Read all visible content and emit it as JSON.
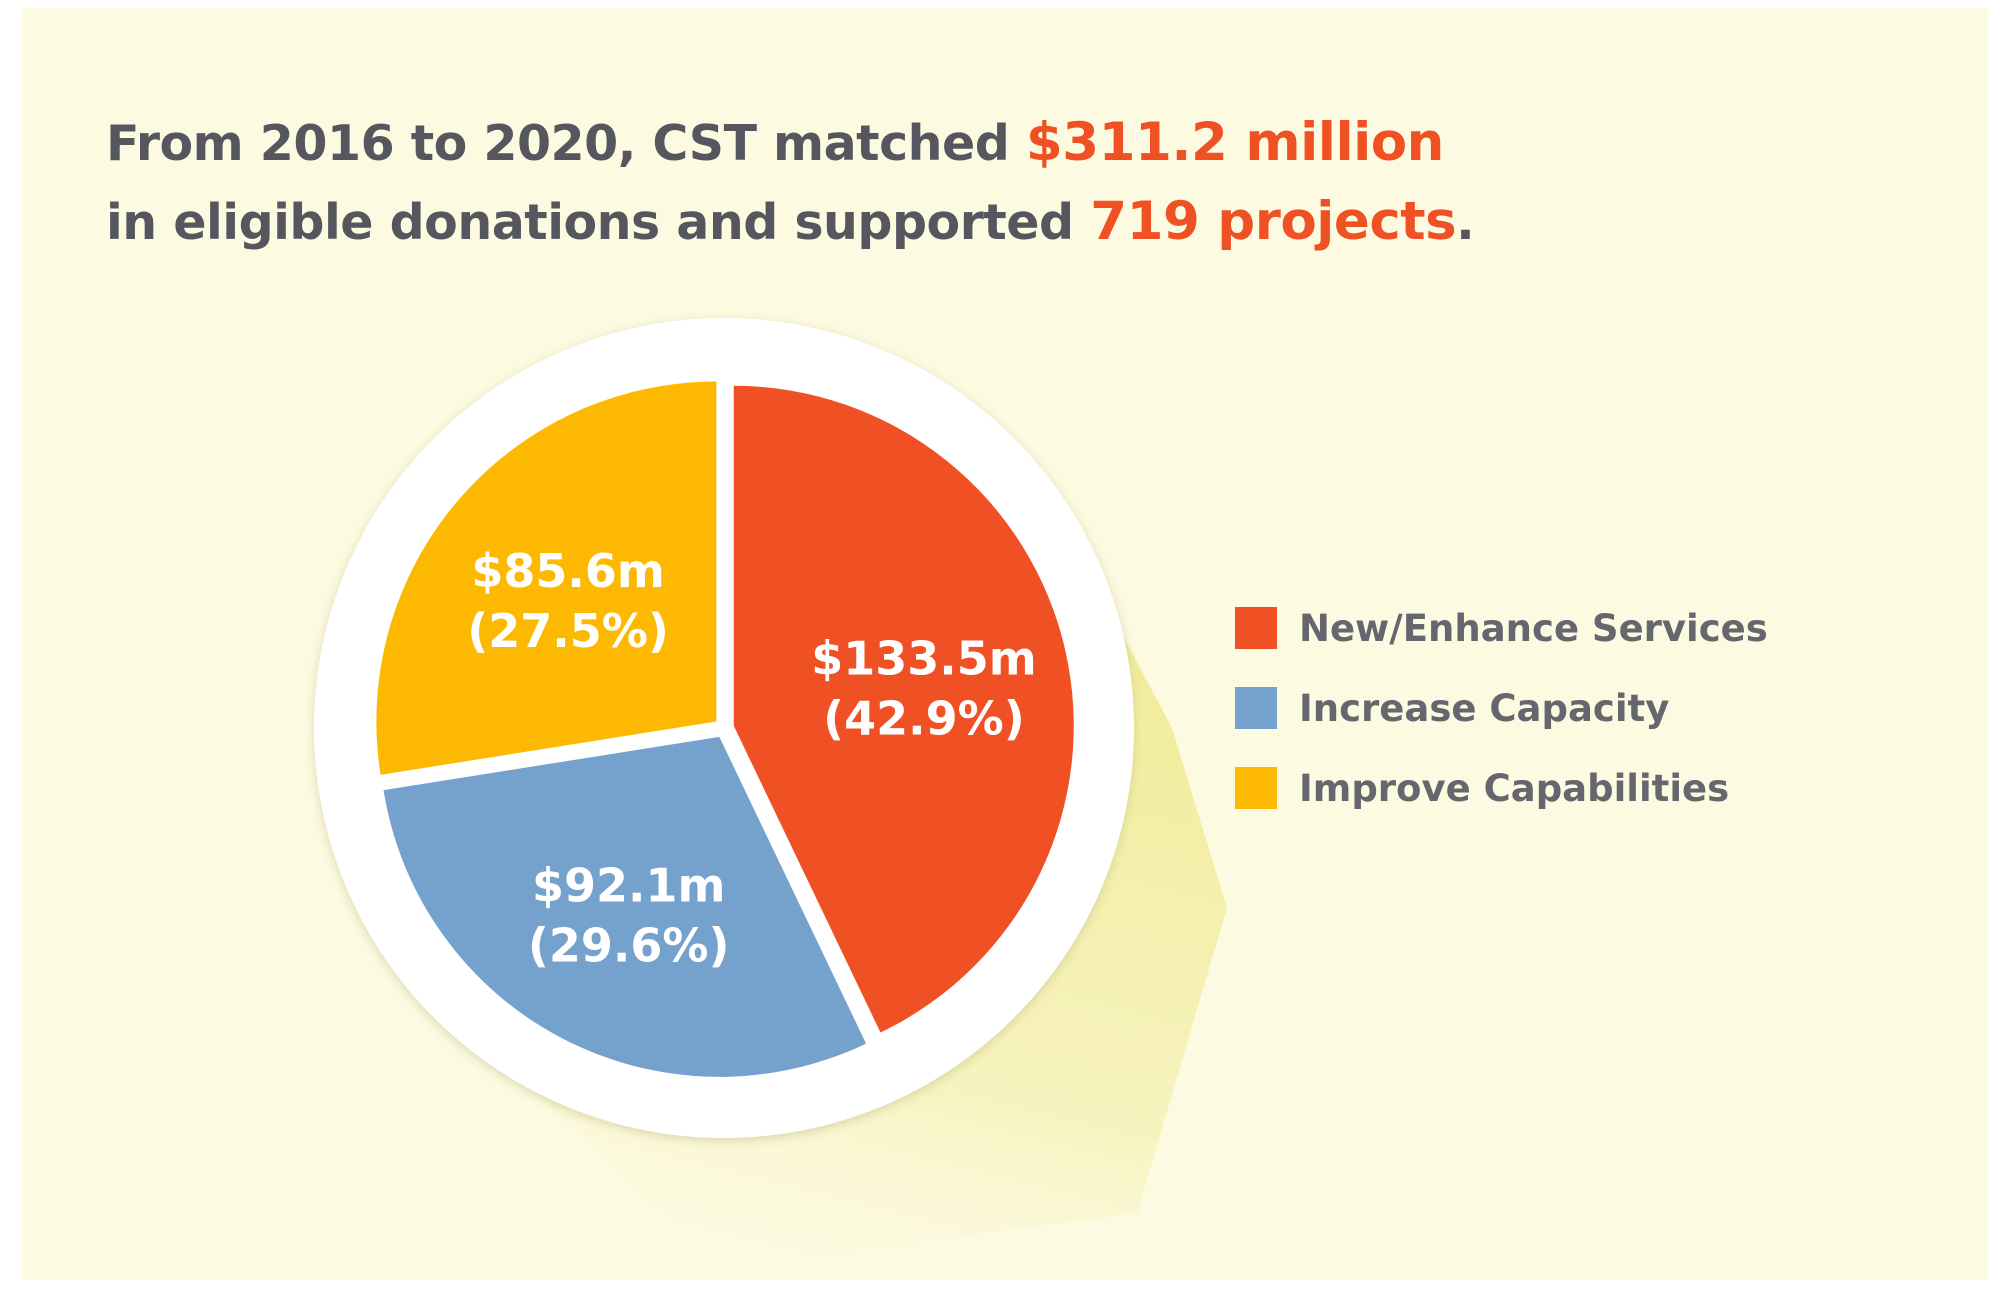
{
  "headline": {
    "line1_prefix": "From 2016 to 2020, CST matched ",
    "line1_highlight": "$311.2 million",
    "line2_prefix": "in eligible donations and supported ",
    "line2_highlight": "719 projects",
    "line2_suffix": "."
  },
  "colors": {
    "background": "#fcfae0",
    "text": "#56565e",
    "highlight": "#ef5124",
    "shadow": "#f3efa6"
  },
  "chart_data": {
    "type": "pie",
    "unit": "$m",
    "categories": [
      "New/Enhance Services",
      "Increase Capacity",
      "Improve Capabilities"
    ],
    "values": [
      133.5,
      92.1,
      85.6
    ],
    "percents": [
      42.9,
      29.6,
      27.5
    ],
    "labels": [
      {
        "value": "$133.5m",
        "percent": "(42.9%)"
      },
      {
        "value": "$92.1m",
        "percent": "(29.6%)"
      },
      {
        "value": "$85.6m",
        "percent": "(27.5%)"
      }
    ],
    "colors": [
      "#ef5124",
      "#74a2cd",
      "#fdb902"
    ],
    "legend_placement": "right",
    "exploded": true,
    "start": "12 o'clock",
    "direction": "clockwise"
  }
}
